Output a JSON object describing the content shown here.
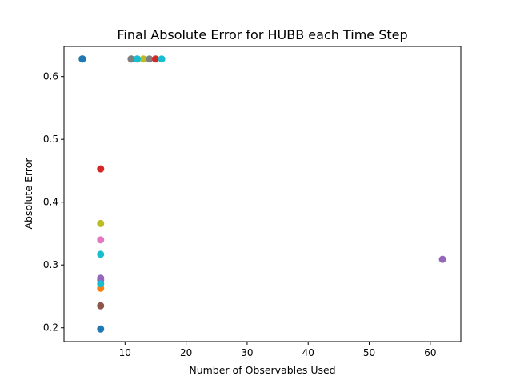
{
  "chart_data": {
    "type": "scatter",
    "title": "Final Absolute Error for HUBB each Time Step",
    "xlabel": "Number of Observables Used",
    "ylabel": "Absolute Error",
    "xlim": [
      0,
      65
    ],
    "ylim": [
      0.178,
      0.648
    ],
    "xticks": [
      10,
      20,
      30,
      40,
      50,
      60
    ],
    "yticks": [
      0.2,
      0.3,
      0.4,
      0.5,
      0.6
    ],
    "xtick_labels": [
      "10",
      "20",
      "30",
      "40",
      "50",
      "60"
    ],
    "ytick_labels": [
      "0.2",
      "0.3",
      "0.4",
      "0.5",
      "0.6"
    ],
    "grid": false,
    "legend": "none",
    "colors": [
      "#1f77b4",
      "#ff7f0e",
      "#2ca02c",
      "#d62728",
      "#9467bd",
      "#8c564b",
      "#e377c2",
      "#7f7f7f",
      "#bcbd22",
      "#17becf"
    ],
    "points": [
      {
        "x": 3,
        "y": 0.628,
        "color": "#1f77b4"
      },
      {
        "x": 3,
        "y": 0.628,
        "color": "#ff7f0e"
      },
      {
        "x": 3,
        "y": 0.628,
        "color": "#2ca02c"
      },
      {
        "x": 3,
        "y": 0.628,
        "color": "#d62728"
      },
      {
        "x": 3,
        "y": 0.628,
        "color": "#9467bd"
      },
      {
        "x": 3,
        "y": 0.628,
        "color": "#8c564b"
      },
      {
        "x": 3,
        "y": 0.628,
        "color": "#e377c2"
      },
      {
        "x": 3,
        "y": 0.628,
        "color": "#7f7f7f"
      },
      {
        "x": 3,
        "y": 0.628,
        "color": "#bcbd22"
      },
      {
        "x": 3,
        "y": 0.628,
        "color": "#17becf"
      },
      {
        "x": 3,
        "y": 0.628,
        "color": "#1f77b4"
      },
      {
        "x": 6,
        "y": 0.198,
        "color": "#1f77b4"
      },
      {
        "x": 6,
        "y": 0.263,
        "color": "#ff7f0e"
      },
      {
        "x": 6,
        "y": 0.453,
        "color": "#d62728"
      },
      {
        "x": 6,
        "y": 0.235,
        "color": "#8c564b"
      },
      {
        "x": 6,
        "y": 0.276,
        "color": "#9467bd"
      },
      {
        "x": 6,
        "y": 0.279,
        "color": "#9467bd"
      },
      {
        "x": 6,
        "y": 0.34,
        "color": "#e377c2"
      },
      {
        "x": 6,
        "y": 0.366,
        "color": "#bcbd22"
      },
      {
        "x": 6,
        "y": 0.317,
        "color": "#17becf"
      },
      {
        "x": 6,
        "y": 0.27,
        "color": "#17becf"
      },
      {
        "x": 11,
        "y": 0.628,
        "color": "#7f7f7f"
      },
      {
        "x": 12,
        "y": 0.628,
        "color": "#2ca02c"
      },
      {
        "x": 13,
        "y": 0.628,
        "color": "#bcbd22"
      },
      {
        "x": 14,
        "y": 0.628,
        "color": "#7f7f7f"
      },
      {
        "x": 15,
        "y": 0.628,
        "color": "#d62728"
      },
      {
        "x": 16,
        "y": 0.628,
        "color": "#17becf"
      },
      {
        "x": 11,
        "y": 0.628,
        "color": "#7f7f7f"
      },
      {
        "x": 12,
        "y": 0.628,
        "color": "#17becf"
      },
      {
        "x": 62,
        "y": 0.309,
        "color": "#9467bd"
      }
    ]
  }
}
